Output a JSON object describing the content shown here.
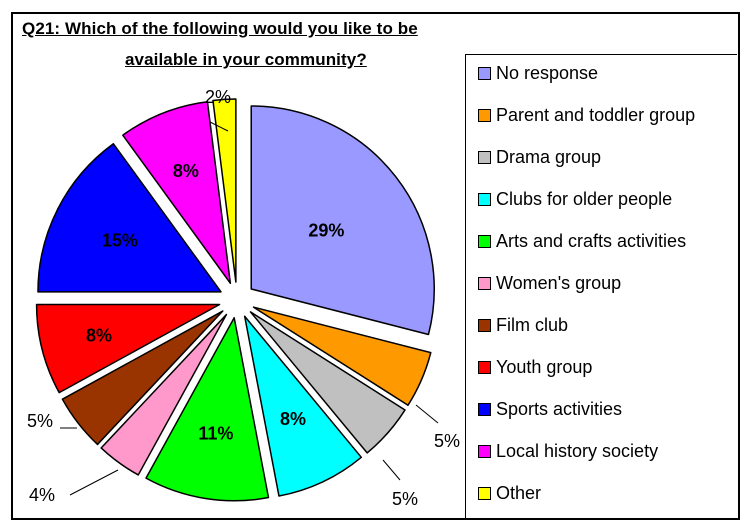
{
  "chart_data": {
    "type": "pie",
    "title_line1": "Q21:  Which of the following would you like to be",
    "title_line2": "available in your community?",
    "slices": [
      {
        "name": "No response",
        "value": 29,
        "label": "29%",
        "color": "#9999ff"
      },
      {
        "name": "Parent and toddler group",
        "value": 5,
        "label": "5%",
        "color": "#ff9900"
      },
      {
        "name": "Drama group",
        "value": 5,
        "label": "5%",
        "color": "#c0c0c0"
      },
      {
        "name": "Clubs for older people",
        "value": 8,
        "label": "8%",
        "color": "#00ffff"
      },
      {
        "name": "Arts and crafts activities",
        "value": 11,
        "label": "11%",
        "color": "#00ff00"
      },
      {
        "name": "Women's group",
        "value": 4,
        "label": "4%",
        "color": "#ff99cc"
      },
      {
        "name": "Film club",
        "value": 5,
        "label": "5%",
        "color": "#993300"
      },
      {
        "name": "Youth group",
        "value": 8,
        "label": "8%",
        "color": "#ff0000"
      },
      {
        "name": "Sports activities",
        "value": 15,
        "label": "15%",
        "color": "#0000ff"
      },
      {
        "name": "Local history society",
        "value": 8,
        "label": "8%",
        "color": "#ff00ff"
      },
      {
        "name": "Other",
        "value": 2,
        "label": "2%",
        "color": "#ffff00"
      }
    ],
    "legend_position": "right"
  }
}
